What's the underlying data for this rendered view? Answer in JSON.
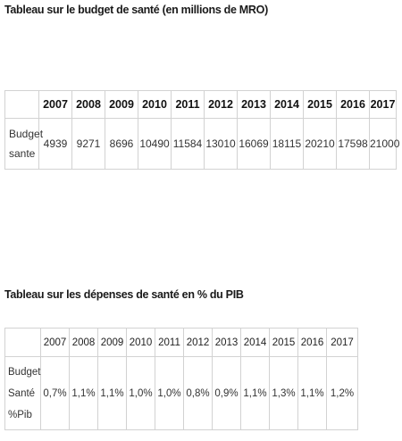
{
  "table1": {
    "title": "Tableau sur le budget de santé (en millions de MRO)",
    "years": [
      "2007",
      "2008",
      "2009",
      "2010",
      "2011",
      "2012",
      "2013",
      "2014",
      "2015",
      "2016",
      "2017"
    ],
    "row_label_lines": [
      "Budget",
      "sante"
    ],
    "values": [
      "4939",
      "9271",
      "8696",
      "10490",
      "11584",
      "13010",
      "16069",
      "18115",
      "20210",
      "17598",
      "21000"
    ]
  },
  "table2": {
    "title": "Tableau sur les dépenses de santé en % du PIB",
    "years": [
      "2007",
      "2008",
      "2009",
      "2010",
      "2011",
      "2012",
      "2013",
      "2014",
      "2015",
      "2016",
      "2017"
    ],
    "row_label_lines": [
      "Budget",
      "Santé",
      "%Pib"
    ],
    "values": [
      "0,7%",
      "1,1%",
      "1,1%",
      "1,0%",
      "1,0%",
      "0,8%",
      "0,9%",
      "1,1%",
      "1,3%",
      "1,1%",
      "1,2%"
    ]
  }
}
